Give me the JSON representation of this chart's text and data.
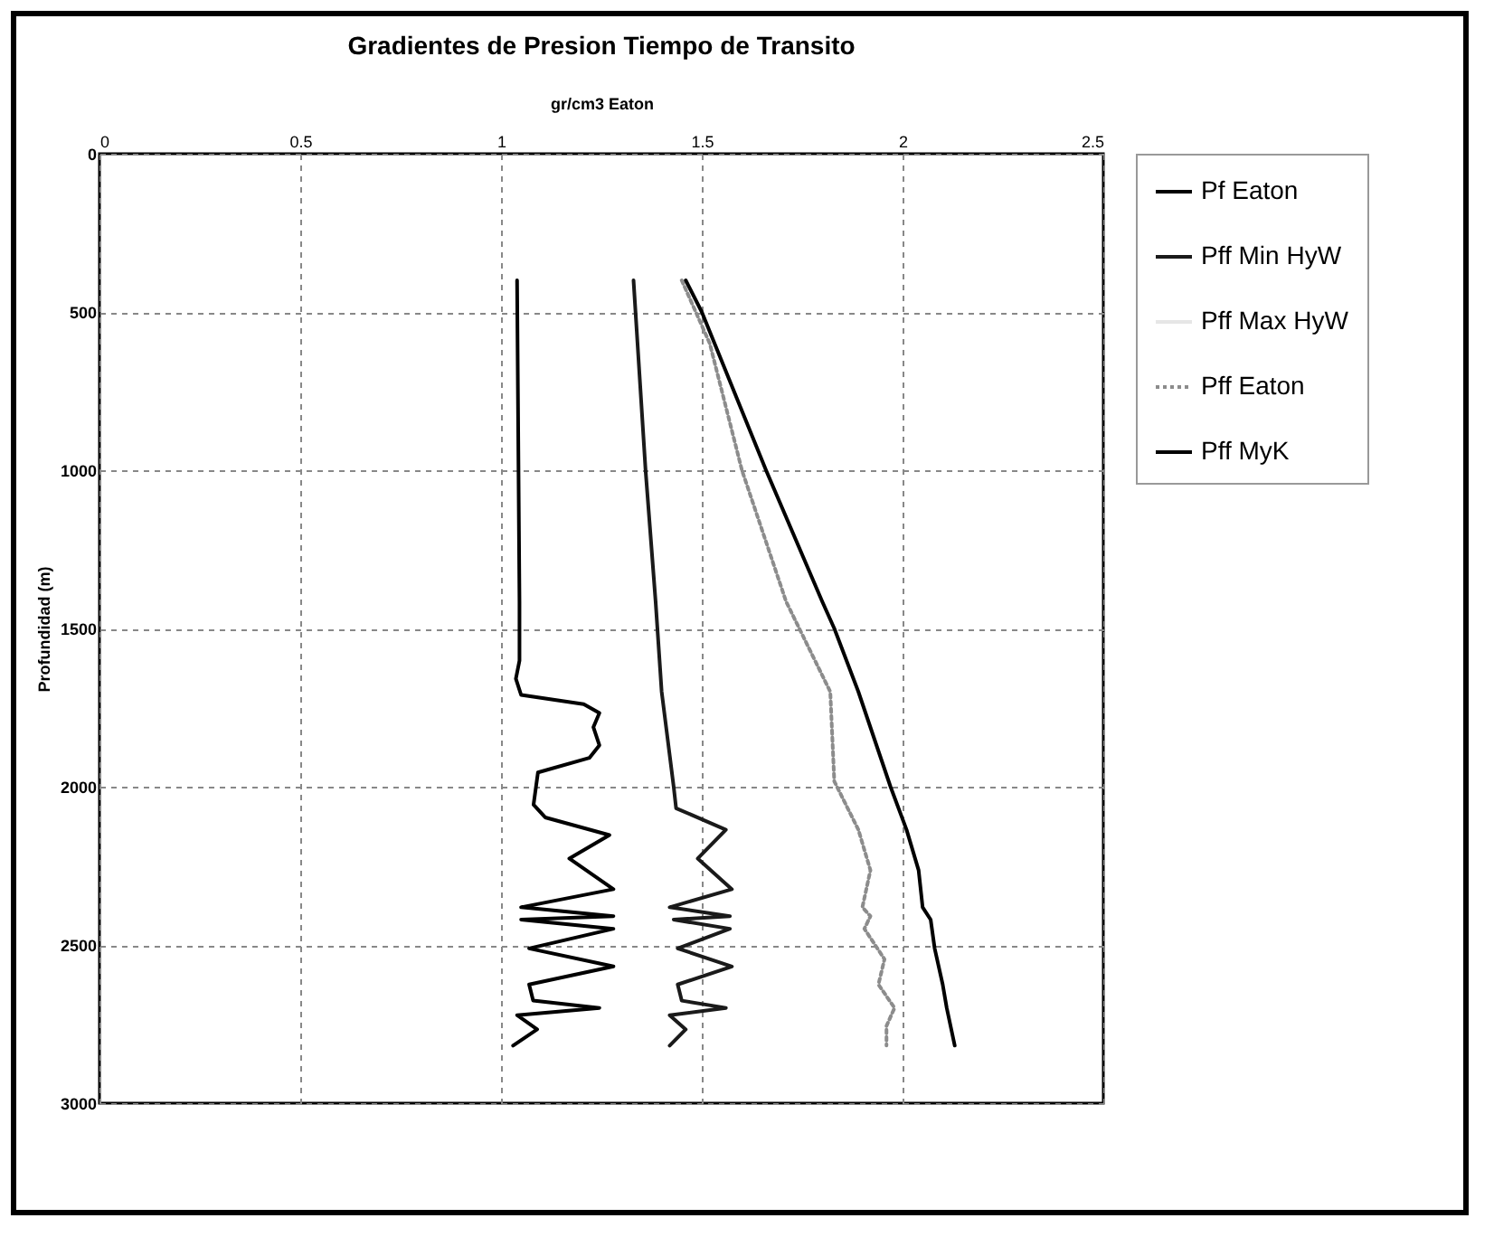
{
  "chart_data": {
    "type": "line",
    "title": "Gradientes de Presion Tiempo de Transito",
    "xlabel": "gr/cm3       Eaton",
    "ylabel": "Profundidad  (m)",
    "xlim": [
      0,
      2.5
    ],
    "xticks": [
      0,
      0.5,
      1,
      1.5,
      2,
      2.5
    ],
    "ylim": [
      3000,
      0
    ],
    "yticks": [
      0,
      500,
      1000,
      1500,
      2000,
      2500,
      3000
    ],
    "grid": true,
    "legend": "right",
    "marker": "none",
    "series": [
      {
        "name": "Pf Eaton",
        "color": "#000000",
        "line_style": "solid",
        "x": [
          1.04,
          1.046,
          1.046,
          1.037,
          1.05,
          1.206,
          1.245,
          1.23,
          1.245,
          1.22,
          1.092,
          1.081,
          1.11,
          1.27,
          1.17,
          1.28,
          1.05,
          1.28,
          1.05,
          1.28,
          1.07,
          1.28,
          1.07,
          1.08,
          1.245,
          1.04,
          1.09,
          1.03
        ],
        "values": [
          400,
          1415,
          1602,
          1659,
          1710,
          1739,
          1767,
          1812,
          1869,
          1909,
          1955,
          2057,
          2097,
          2153,
          2227,
          2324,
          2381,
          2409,
          2420,
          2449,
          2511,
          2568,
          2625,
          2676,
          2699,
          2722,
          2767,
          2818
        ]
      },
      {
        "name": "Pff Min HyW",
        "color": "#1a1a1a",
        "line_style": "solid",
        "x": [
          1.33,
          1.36,
          1.385,
          1.4,
          1.43,
          1.436,
          1.56,
          1.49,
          1.575,
          1.42,
          1.57,
          1.43,
          1.57,
          1.44,
          1.575,
          1.44,
          1.45,
          1.56,
          1.42,
          1.46,
          1.42
        ],
        "values": [
          400,
          1000,
          1415,
          1699,
          2000,
          2068,
          2136,
          2227,
          2324,
          2381,
          2409,
          2420,
          2449,
          2511,
          2568,
          2625,
          2676,
          2699,
          2722,
          2767,
          2818
        ]
      },
      {
        "name": "Pff Max HyW",
        "color": "#e6e6e6",
        "line_style": "solid",
        "x": [
          null
        ],
        "values": [
          null
        ]
      },
      {
        "name": "Pff Eaton",
        "color": "#8c8c8c",
        "line_style": "dotted",
        "x": [
          1.45,
          1.52,
          1.6,
          1.71,
          1.82,
          1.83,
          1.89,
          1.92,
          1.9,
          1.92,
          1.905,
          1.955,
          1.94,
          1.98,
          1.96,
          1.96
        ],
        "values": [
          400,
          600,
          1000,
          1415,
          1700,
          1983,
          2136,
          2264,
          2381,
          2409,
          2449,
          2545,
          2625,
          2699,
          2756,
          2818
        ]
      },
      {
        "name": "Pff MyK",
        "color": "#000000",
        "line_style": "solid",
        "x": [
          1.46,
          1.5,
          1.66,
          1.8,
          1.83,
          1.89,
          1.97,
          2.01,
          2.04,
          2.05,
          2.07,
          2.08,
          2.1,
          2.11,
          2.13
        ],
        "values": [
          400,
          500,
          1000,
          1415,
          1500,
          1700,
          2000,
          2136,
          2264,
          2381,
          2420,
          2511,
          2625,
          2699,
          2818
        ]
      }
    ]
  }
}
